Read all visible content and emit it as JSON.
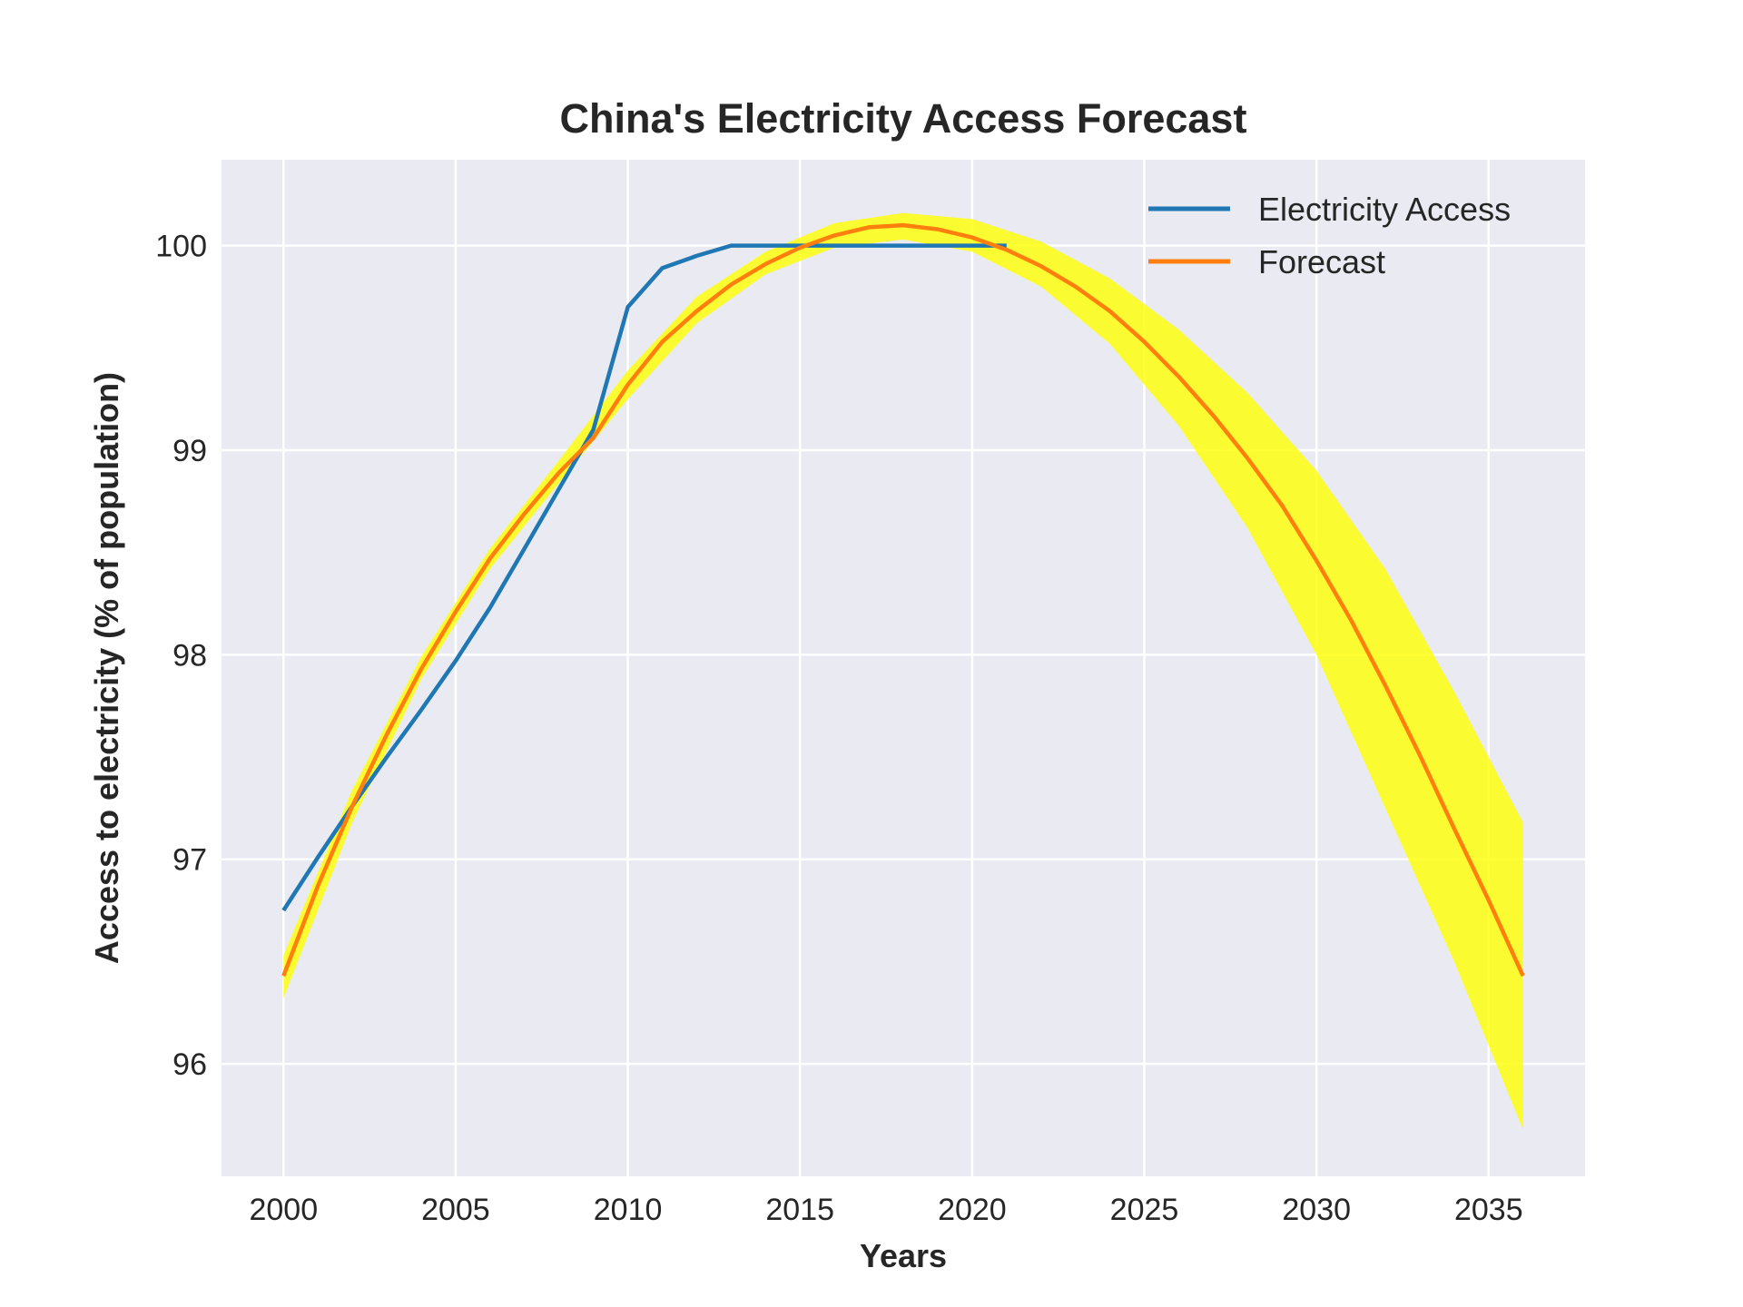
{
  "chart_data": {
    "type": "line",
    "title": "China's Electricity Access Forecast",
    "xlabel": "Years",
    "ylabel": "Access to electricity (% of population)",
    "xlim": [
      1998.2,
      2037.8
    ],
    "ylim": [
      95.45,
      100.42
    ],
    "x_ticks": [
      2000,
      2005,
      2010,
      2015,
      2020,
      2025,
      2030,
      2035
    ],
    "y_ticks": [
      96,
      97,
      98,
      99,
      100
    ],
    "grid": true,
    "legend_position": "top-right",
    "colors": {
      "background": "#eaeaf2",
      "grid": "#ffffff",
      "actual": "#1f77b4",
      "forecast": "#ff7f0e",
      "band": "#ffff00"
    },
    "series": [
      {
        "name": "Electricity Access",
        "x": [
          2000,
          2001,
          2002,
          2003,
          2004,
          2005,
          2006,
          2007,
          2008,
          2009,
          2010,
          2011,
          2012,
          2013,
          2014,
          2015,
          2016,
          2017,
          2018,
          2019,
          2020,
          2021
        ],
        "values": [
          96.75,
          97.01,
          97.26,
          97.5,
          97.73,
          97.97,
          98.23,
          98.52,
          98.81,
          99.1,
          99.7,
          99.89,
          99.95,
          100.0,
          100.0,
          100.0,
          100.0,
          100.0,
          100.0,
          100.0,
          100.0,
          100.0
        ]
      },
      {
        "name": "Forecast",
        "x": [
          2000,
          2001,
          2002,
          2003,
          2004,
          2005,
          2006,
          2007,
          2008,
          2009,
          2010,
          2011,
          2012,
          2013,
          2014,
          2015,
          2016,
          2017,
          2018,
          2019,
          2020,
          2021,
          2022,
          2023,
          2024,
          2025,
          2026,
          2027,
          2028,
          2029,
          2030,
          2031,
          2032,
          2033,
          2034,
          2035,
          2036
        ],
        "values": [
          96.43,
          96.87,
          97.26,
          97.61,
          97.93,
          98.21,
          98.47,
          98.69,
          98.89,
          99.06,
          99.32,
          99.53,
          99.68,
          99.81,
          99.91,
          99.99,
          100.05,
          100.09,
          100.1,
          100.08,
          100.04,
          99.98,
          99.9,
          99.8,
          99.68,
          99.53,
          99.36,
          99.17,
          98.96,
          98.73,
          98.46,
          98.17,
          97.85,
          97.51,
          97.15,
          96.8,
          96.43
        ]
      }
    ],
    "confidence_band": {
      "x": [
        2000,
        2002,
        2004,
        2006,
        2008,
        2010,
        2012,
        2014,
        2016,
        2018,
        2020,
        2022,
        2024,
        2026,
        2028,
        2030,
        2032,
        2034,
        2036
      ],
      "lower": [
        96.32,
        97.18,
        97.88,
        98.42,
        98.84,
        99.25,
        99.62,
        99.86,
        99.99,
        100.03,
        99.97,
        99.8,
        99.52,
        99.12,
        98.62,
        98.0,
        97.25,
        96.5,
        95.68
      ],
      "upper": [
        96.53,
        97.34,
        97.99,
        98.52,
        98.95,
        99.39,
        99.75,
        99.97,
        100.11,
        100.16,
        100.13,
        100.02,
        99.84,
        99.59,
        99.28,
        98.9,
        98.42,
        97.82,
        97.18
      ]
    }
  }
}
